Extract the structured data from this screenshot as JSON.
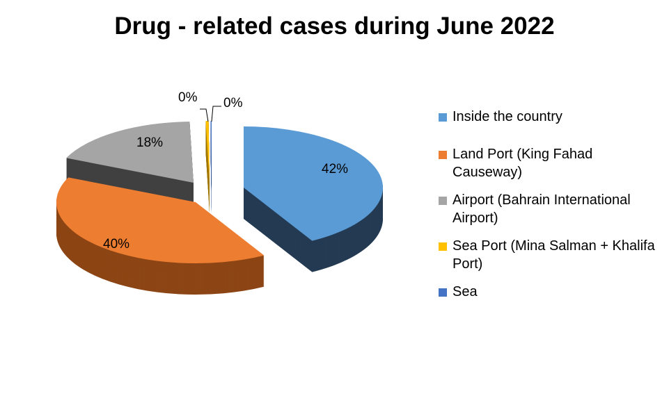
{
  "chart_data": {
    "type": "pie",
    "title": "Drug - related cases during June 2022",
    "categories": [
      "Inside the country",
      "Land Port (King Fahad Causeway)",
      "Airport (Bahrain International Airport)",
      "Sea Port (Mina Salman + Khalifa Port)",
      "Sea"
    ],
    "values": [
      42,
      40,
      18,
      0,
      0
    ],
    "data_labels": [
      "42%",
      "40%",
      "18%",
      "0%",
      "0%"
    ],
    "colors": [
      "#5b9bd5",
      "#ed7d31",
      "#a5a5a5",
      "#ffc000",
      "#4472c4"
    ],
    "side_colors": [
      "#243b53",
      "#8c4514",
      "#404040",
      "#a07800",
      "#2a4a80"
    ],
    "legend_position": "right",
    "style": "exploded 3D pie"
  }
}
